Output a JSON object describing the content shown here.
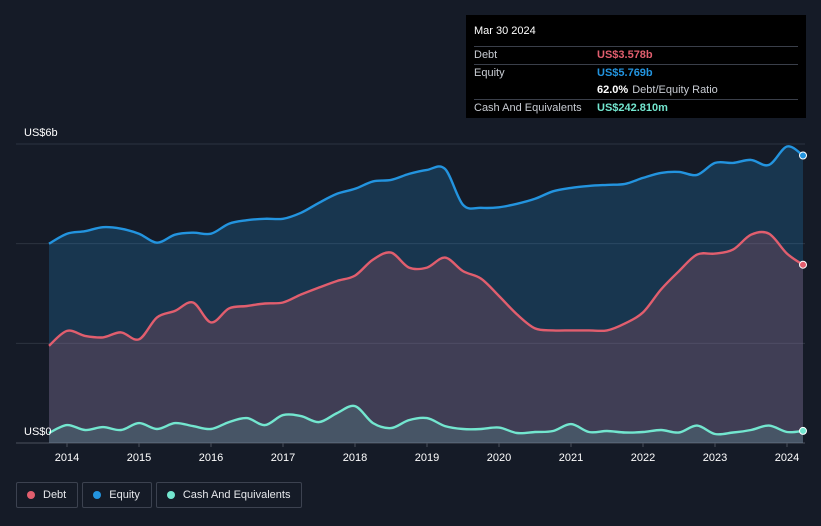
{
  "chart_data": {
    "type": "area",
    "currency_prefix": "US$",
    "y_axis": {
      "top_label": "US$6b",
      "bottom_label": "US$0",
      "ylim": [
        0,
        6
      ]
    },
    "x_ticks": [
      "2014",
      "2015",
      "2016",
      "2017",
      "2018",
      "2019",
      "2020",
      "2021",
      "2022",
      "2023",
      "2024"
    ],
    "x_range": [
      2013.75,
      2024.25
    ],
    "series": [
      {
        "name": "Equity",
        "color": "#2394df",
        "x": [
          2013.75,
          2014.0,
          2014.25,
          2014.5,
          2014.75,
          2015.0,
          2015.25,
          2015.5,
          2015.75,
          2016.0,
          2016.25,
          2016.5,
          2016.75,
          2017.0,
          2017.25,
          2017.5,
          2017.75,
          2018.0,
          2018.25,
          2018.5,
          2018.75,
          2019.0,
          2019.25,
          2019.5,
          2019.75,
          2020.0,
          2020.25,
          2020.5,
          2020.75,
          2021.0,
          2021.25,
          2021.5,
          2021.75,
          2022.0,
          2022.25,
          2022.5,
          2022.75,
          2023.0,
          2023.25,
          2023.5,
          2023.75,
          2024.0,
          2024.25
        ],
        "values": [
          4.0,
          4.2,
          4.25,
          4.33,
          4.3,
          4.2,
          4.02,
          4.18,
          4.22,
          4.2,
          4.4,
          4.47,
          4.5,
          4.5,
          4.62,
          4.82,
          5.0,
          5.1,
          5.25,
          5.28,
          5.4,
          5.48,
          5.5,
          4.78,
          4.72,
          4.73,
          4.8,
          4.9,
          5.05,
          5.12,
          5.16,
          5.18,
          5.2,
          5.32,
          5.42,
          5.44,
          5.38,
          5.62,
          5.62,
          5.68,
          5.58,
          5.95,
          5.769
        ]
      },
      {
        "name": "Debt",
        "color": "#e15e6e",
        "x": [
          2013.75,
          2014.0,
          2014.25,
          2014.5,
          2014.75,
          2015.0,
          2015.25,
          2015.5,
          2015.75,
          2016.0,
          2016.25,
          2016.5,
          2016.75,
          2017.0,
          2017.25,
          2017.5,
          2017.75,
          2018.0,
          2018.25,
          2018.5,
          2018.75,
          2019.0,
          2019.25,
          2019.5,
          2019.75,
          2020.0,
          2020.25,
          2020.5,
          2020.75,
          2021.0,
          2021.25,
          2021.5,
          2021.75,
          2022.0,
          2022.25,
          2022.5,
          2022.75,
          2023.0,
          2023.25,
          2023.5,
          2023.75,
          2024.0,
          2024.25
        ],
        "values": [
          1.95,
          2.25,
          2.15,
          2.12,
          2.22,
          2.08,
          2.52,
          2.65,
          2.82,
          2.42,
          2.7,
          2.75,
          2.8,
          2.82,
          2.98,
          3.12,
          3.25,
          3.36,
          3.68,
          3.82,
          3.52,
          3.52,
          3.72,
          3.45,
          3.3,
          2.95,
          2.58,
          2.3,
          2.26,
          2.26,
          2.26,
          2.26,
          2.4,
          2.62,
          3.08,
          3.45,
          3.78,
          3.8,
          3.88,
          4.18,
          4.2,
          3.8,
          3.578
        ]
      },
      {
        "name": "Cash And Equivalents",
        "color": "#73e6cf",
        "x": [
          2013.75,
          2014.0,
          2014.25,
          2014.5,
          2014.75,
          2015.0,
          2015.25,
          2015.5,
          2015.75,
          2016.0,
          2016.25,
          2016.5,
          2016.75,
          2017.0,
          2017.25,
          2017.5,
          2017.75,
          2018.0,
          2018.25,
          2018.5,
          2018.75,
          2019.0,
          2019.25,
          2019.5,
          2019.75,
          2020.0,
          2020.25,
          2020.5,
          2020.75,
          2021.0,
          2021.25,
          2021.5,
          2021.75,
          2022.0,
          2022.25,
          2022.5,
          2022.75,
          2023.0,
          2023.25,
          2023.5,
          2023.75,
          2024.0,
          2024.25
        ],
        "values": [
          0.2,
          0.36,
          0.26,
          0.32,
          0.26,
          0.4,
          0.28,
          0.4,
          0.34,
          0.28,
          0.42,
          0.5,
          0.36,
          0.56,
          0.54,
          0.42,
          0.6,
          0.74,
          0.4,
          0.3,
          0.46,
          0.5,
          0.34,
          0.28,
          0.28,
          0.31,
          0.2,
          0.22,
          0.24,
          0.38,
          0.22,
          0.24,
          0.21,
          0.22,
          0.26,
          0.21,
          0.35,
          0.18,
          0.21,
          0.26,
          0.35,
          0.22,
          0.2428
        ]
      }
    ],
    "legend": [
      {
        "name": "Debt",
        "color": "#e15e6e"
      },
      {
        "name": "Equity",
        "color": "#2394df"
      },
      {
        "name": "Cash And Equivalents",
        "color": "#73e6cf"
      }
    ],
    "tooltip": {
      "date": "Mar 30 2024",
      "debt_label": "Debt",
      "debt_value": "US$3.578b",
      "equity_label": "Equity",
      "equity_value": "US$5.769b",
      "ratio_value": "62.0%",
      "ratio_label": "Debt/Equity Ratio",
      "cash_label": "Cash And Equivalents",
      "cash_value": "US$242.810m"
    }
  }
}
